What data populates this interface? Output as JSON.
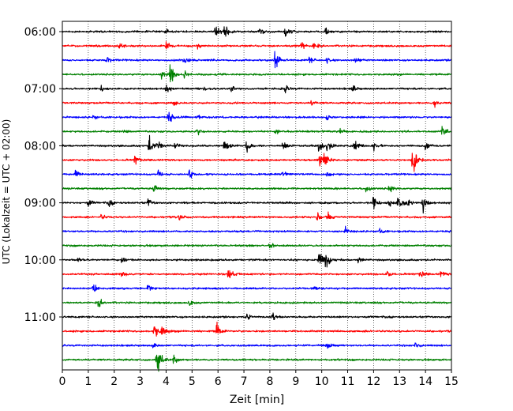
{
  "chart_data": {
    "type": "line",
    "title": "",
    "xlabel": "Zeit  [min]",
    "ylabel": "UTC (Lokalzeit = UTC + 02:00)",
    "xlim": [
      0,
      15
    ],
    "x_ticks": [
      0,
      1,
      2,
      3,
      4,
      5,
      6,
      7,
      8,
      9,
      10,
      11,
      12,
      13,
      14,
      15
    ],
    "x_tick_labels": [
      "0",
      "1",
      "2",
      "3",
      "4",
      "5",
      "6",
      "7",
      "8",
      "9",
      "10",
      "11",
      "12",
      "13",
      "14",
      "15"
    ],
    "y_tick_labels": [
      "06:00",
      "07:00",
      "08:00",
      "09:00",
      "10:00",
      "11:00"
    ],
    "x_grid": true,
    "y_grid": false,
    "trace_interval_minutes": 15,
    "colors": [
      "#000000",
      "#ff0000",
      "#0000ff",
      "#008000"
    ],
    "traces": [
      {
        "time": "06:00",
        "color": "#000000",
        "events": [
          [
            4.0,
            0.25
          ],
          [
            5.9,
            0.5
          ],
          [
            6.25,
            0.65
          ],
          [
            7.6,
            0.3
          ],
          [
            8.6,
            0.4
          ],
          [
            10.15,
            0.3
          ]
        ]
      },
      {
        "time": "06:15",
        "color": "#ff0000",
        "events": [
          [
            2.2,
            0.2
          ],
          [
            4.0,
            0.4
          ],
          [
            5.2,
            0.25
          ],
          [
            9.2,
            0.35
          ],
          [
            9.7,
            0.25
          ]
        ]
      },
      {
        "time": "06:30",
        "color": "#0000ff",
        "events": [
          [
            1.7,
            0.25
          ],
          [
            4.7,
            0.3
          ],
          [
            8.2,
            0.9
          ],
          [
            9.5,
            0.3
          ],
          [
            10.2,
            0.25
          ],
          [
            11.3,
            0.3
          ]
        ]
      },
      {
        "time": "06:45",
        "color": "#008000",
        "events": [
          [
            3.8,
            0.35
          ],
          [
            4.15,
            1.0
          ],
          [
            4.7,
            0.4
          ]
        ]
      },
      {
        "time": "07:00",
        "color": "#000000",
        "events": [
          [
            1.5,
            0.25
          ],
          [
            4.0,
            0.3
          ],
          [
            5.5,
            0.25
          ],
          [
            6.5,
            0.25
          ],
          [
            8.6,
            0.25
          ],
          [
            11.2,
            0.25
          ]
        ]
      },
      {
        "time": "07:15",
        "color": "#ff0000",
        "events": [
          [
            4.3,
            0.2
          ],
          [
            9.6,
            0.2
          ],
          [
            14.35,
            0.4
          ]
        ]
      },
      {
        "time": "07:30",
        "color": "#0000ff",
        "events": [
          [
            1.2,
            0.2
          ],
          [
            4.1,
            0.5
          ],
          [
            5.2,
            0.2
          ],
          [
            10.2,
            0.2
          ]
        ]
      },
      {
        "time": "07:45",
        "color": "#008000",
        "events": [
          [
            2.3,
            0.2
          ],
          [
            5.2,
            0.3
          ],
          [
            8.2,
            0.3
          ],
          [
            10.7,
            0.25
          ],
          [
            14.65,
            0.55
          ]
        ]
      },
      {
        "time": "08:00",
        "color": "#000000",
        "events": [
          [
            3.35,
            0.9
          ],
          [
            3.7,
            0.55
          ],
          [
            4.35,
            0.4
          ],
          [
            6.25,
            0.45
          ],
          [
            7.1,
            0.6
          ],
          [
            8.5,
            0.45
          ],
          [
            9.9,
            0.55
          ],
          [
            10.2,
            0.5
          ],
          [
            11.25,
            0.65
          ],
          [
            12.0,
            0.3
          ],
          [
            14.0,
            0.4
          ]
        ]
      },
      {
        "time": "08:15",
        "color": "#ff0000",
        "events": [
          [
            2.8,
            0.35
          ],
          [
            9.9,
            0.6
          ],
          [
            10.1,
            0.5
          ],
          [
            13.5,
            1.6
          ]
        ]
      },
      {
        "time": "08:30",
        "color": "#0000ff",
        "events": [
          [
            0.5,
            0.35
          ],
          [
            3.7,
            0.3
          ],
          [
            4.9,
            0.5
          ],
          [
            8.5,
            0.2
          ],
          [
            10.2,
            0.2
          ]
        ]
      },
      {
        "time": "08:45",
        "color": "#008000",
        "events": [
          [
            3.5,
            0.35
          ],
          [
            11.7,
            0.35
          ],
          [
            12.6,
            0.35
          ]
        ]
      },
      {
        "time": "09:00",
        "color": "#000000",
        "events": [
          [
            1.0,
            0.3
          ],
          [
            1.8,
            0.25
          ],
          [
            3.3,
            0.3
          ],
          [
            12.0,
            0.6
          ],
          [
            12.6,
            0.4
          ],
          [
            12.95,
            0.8
          ],
          [
            13.3,
            0.4
          ],
          [
            13.9,
            0.6
          ]
        ]
      },
      {
        "time": "09:15",
        "color": "#ff0000",
        "events": [
          [
            1.5,
            0.2
          ],
          [
            4.5,
            0.25
          ],
          [
            9.8,
            0.5
          ],
          [
            10.2,
            0.4
          ]
        ]
      },
      {
        "time": "09:30",
        "color": "#0000ff",
        "events": [
          [
            10.9,
            0.3
          ],
          [
            12.2,
            0.25
          ]
        ]
      },
      {
        "time": "09:45",
        "color": "#008000",
        "events": [
          [
            8.0,
            0.2
          ]
        ]
      },
      {
        "time": "10:00",
        "color": "#000000",
        "events": [
          [
            0.6,
            0.2
          ],
          [
            2.3,
            0.25
          ],
          [
            9.9,
            0.9
          ],
          [
            10.15,
            0.7
          ],
          [
            11.4,
            0.3
          ]
        ]
      },
      {
        "time": "10:15",
        "color": "#ff0000",
        "events": [
          [
            2.3,
            0.2
          ],
          [
            6.4,
            0.55
          ],
          [
            12.5,
            0.35
          ],
          [
            13.8,
            0.3
          ],
          [
            14.6,
            0.25
          ]
        ]
      },
      {
        "time": "10:30",
        "color": "#0000ff",
        "events": [
          [
            1.2,
            0.4
          ],
          [
            3.3,
            0.25
          ],
          [
            9.7,
            0.25
          ]
        ]
      },
      {
        "time": "10:45",
        "color": "#008000",
        "events": [
          [
            1.4,
            0.45
          ],
          [
            4.9,
            0.25
          ]
        ]
      },
      {
        "time": "11:00",
        "color": "#000000",
        "events": [
          [
            7.1,
            0.3
          ],
          [
            8.1,
            0.3
          ]
        ]
      },
      {
        "time": "11:15",
        "color": "#ff0000",
        "events": [
          [
            3.55,
            0.7
          ],
          [
            3.85,
            0.45
          ],
          [
            5.95,
            0.6
          ]
        ]
      },
      {
        "time": "11:30",
        "color": "#0000ff",
        "events": [
          [
            3.5,
            0.25
          ],
          [
            10.2,
            0.45
          ],
          [
            13.6,
            0.25
          ]
        ]
      },
      {
        "time": "11:45",
        "color": "#008000",
        "events": [
          [
            3.65,
            1.5
          ],
          [
            4.3,
            0.35
          ]
        ]
      }
    ]
  }
}
